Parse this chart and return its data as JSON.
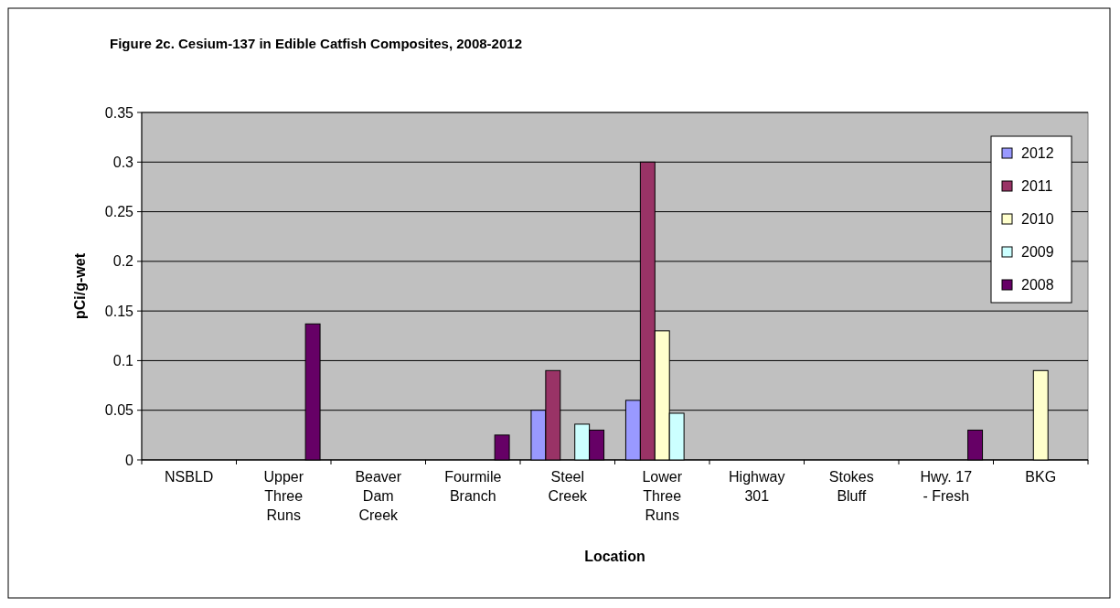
{
  "chart_data": {
    "type": "bar",
    "title": "Figure 2c. Cesium-137 in Edible Catfish Composites, 2008-2012",
    "xlabel": "Location",
    "ylabel": "pCi/g-wet",
    "categories": [
      "NSBLD",
      "Upper\nThree\nRuns",
      "Beaver\nDam\nCreek",
      "Fourmile\nBranch",
      "Steel\nCreek",
      "Lower\nThree\nRuns",
      "Highway\n301",
      "Stokes\nBluff",
      "Hwy. 17\n- Fresh",
      "BKG"
    ],
    "series": [
      {
        "name": "2012",
        "color": "#9999ff",
        "values": [
          null,
          null,
          null,
          null,
          0.05,
          0.06,
          null,
          null,
          null,
          null
        ]
      },
      {
        "name": "2011",
        "color": "#993366",
        "values": [
          null,
          null,
          null,
          null,
          0.09,
          0.3,
          null,
          null,
          null,
          null
        ]
      },
      {
        "name": "2010",
        "color": "#ffffcc",
        "values": [
          null,
          null,
          null,
          null,
          null,
          0.13,
          null,
          null,
          null,
          0.09
        ]
      },
      {
        "name": "2009",
        "color": "#ccffff",
        "values": [
          null,
          null,
          null,
          null,
          0.036,
          0.047,
          null,
          null,
          null,
          null
        ]
      },
      {
        "name": "2008",
        "color": "#660066",
        "values": [
          null,
          0.137,
          null,
          0.025,
          0.03,
          null,
          null,
          null,
          0.03,
          null
        ]
      }
    ],
    "ylim": [
      0,
      0.35
    ],
    "yticks": [
      0,
      0.05,
      0.1,
      0.15,
      0.2,
      0.25,
      0.3,
      0.35
    ],
    "grid": "y",
    "legend": "top right"
  }
}
